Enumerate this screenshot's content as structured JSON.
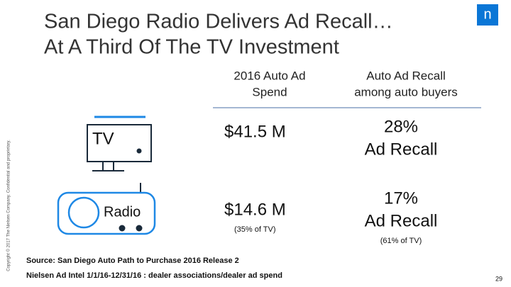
{
  "header": {
    "title_lines": [
      "San Diego Radio Delivers Ad Recall…",
      "At A Third Of The TV Investment"
    ],
    "logo": "n"
  },
  "table": {
    "columns": [
      [
        "2016 Auto Ad",
        "Spend"
      ],
      [
        "Auto Ad Recall",
        "among auto buyers"
      ]
    ],
    "rows": [
      {
        "medium": "TV",
        "spend": "$41.5 M",
        "recall": [
          "28%",
          "Ad Recall"
        ]
      },
      {
        "medium": "Radio",
        "spend": "$14.6 M",
        "spend_note": "(35% of TV)",
        "recall": [
          "17%",
          "Ad Recall"
        ],
        "recall_note": "(61% of TV)"
      }
    ]
  },
  "footer": {
    "source_lines": [
      "Source: San Diego Auto Path to Purchase 2016 Release 2",
      "Nielsen Ad Intel 1/1/16-12/31/16 : dealer associations/dealer ad spend"
    ],
    "copyright": "Copyright © 2017 The Nielsen Company. Confidential and proprietary.",
    "page_number": "29"
  }
}
